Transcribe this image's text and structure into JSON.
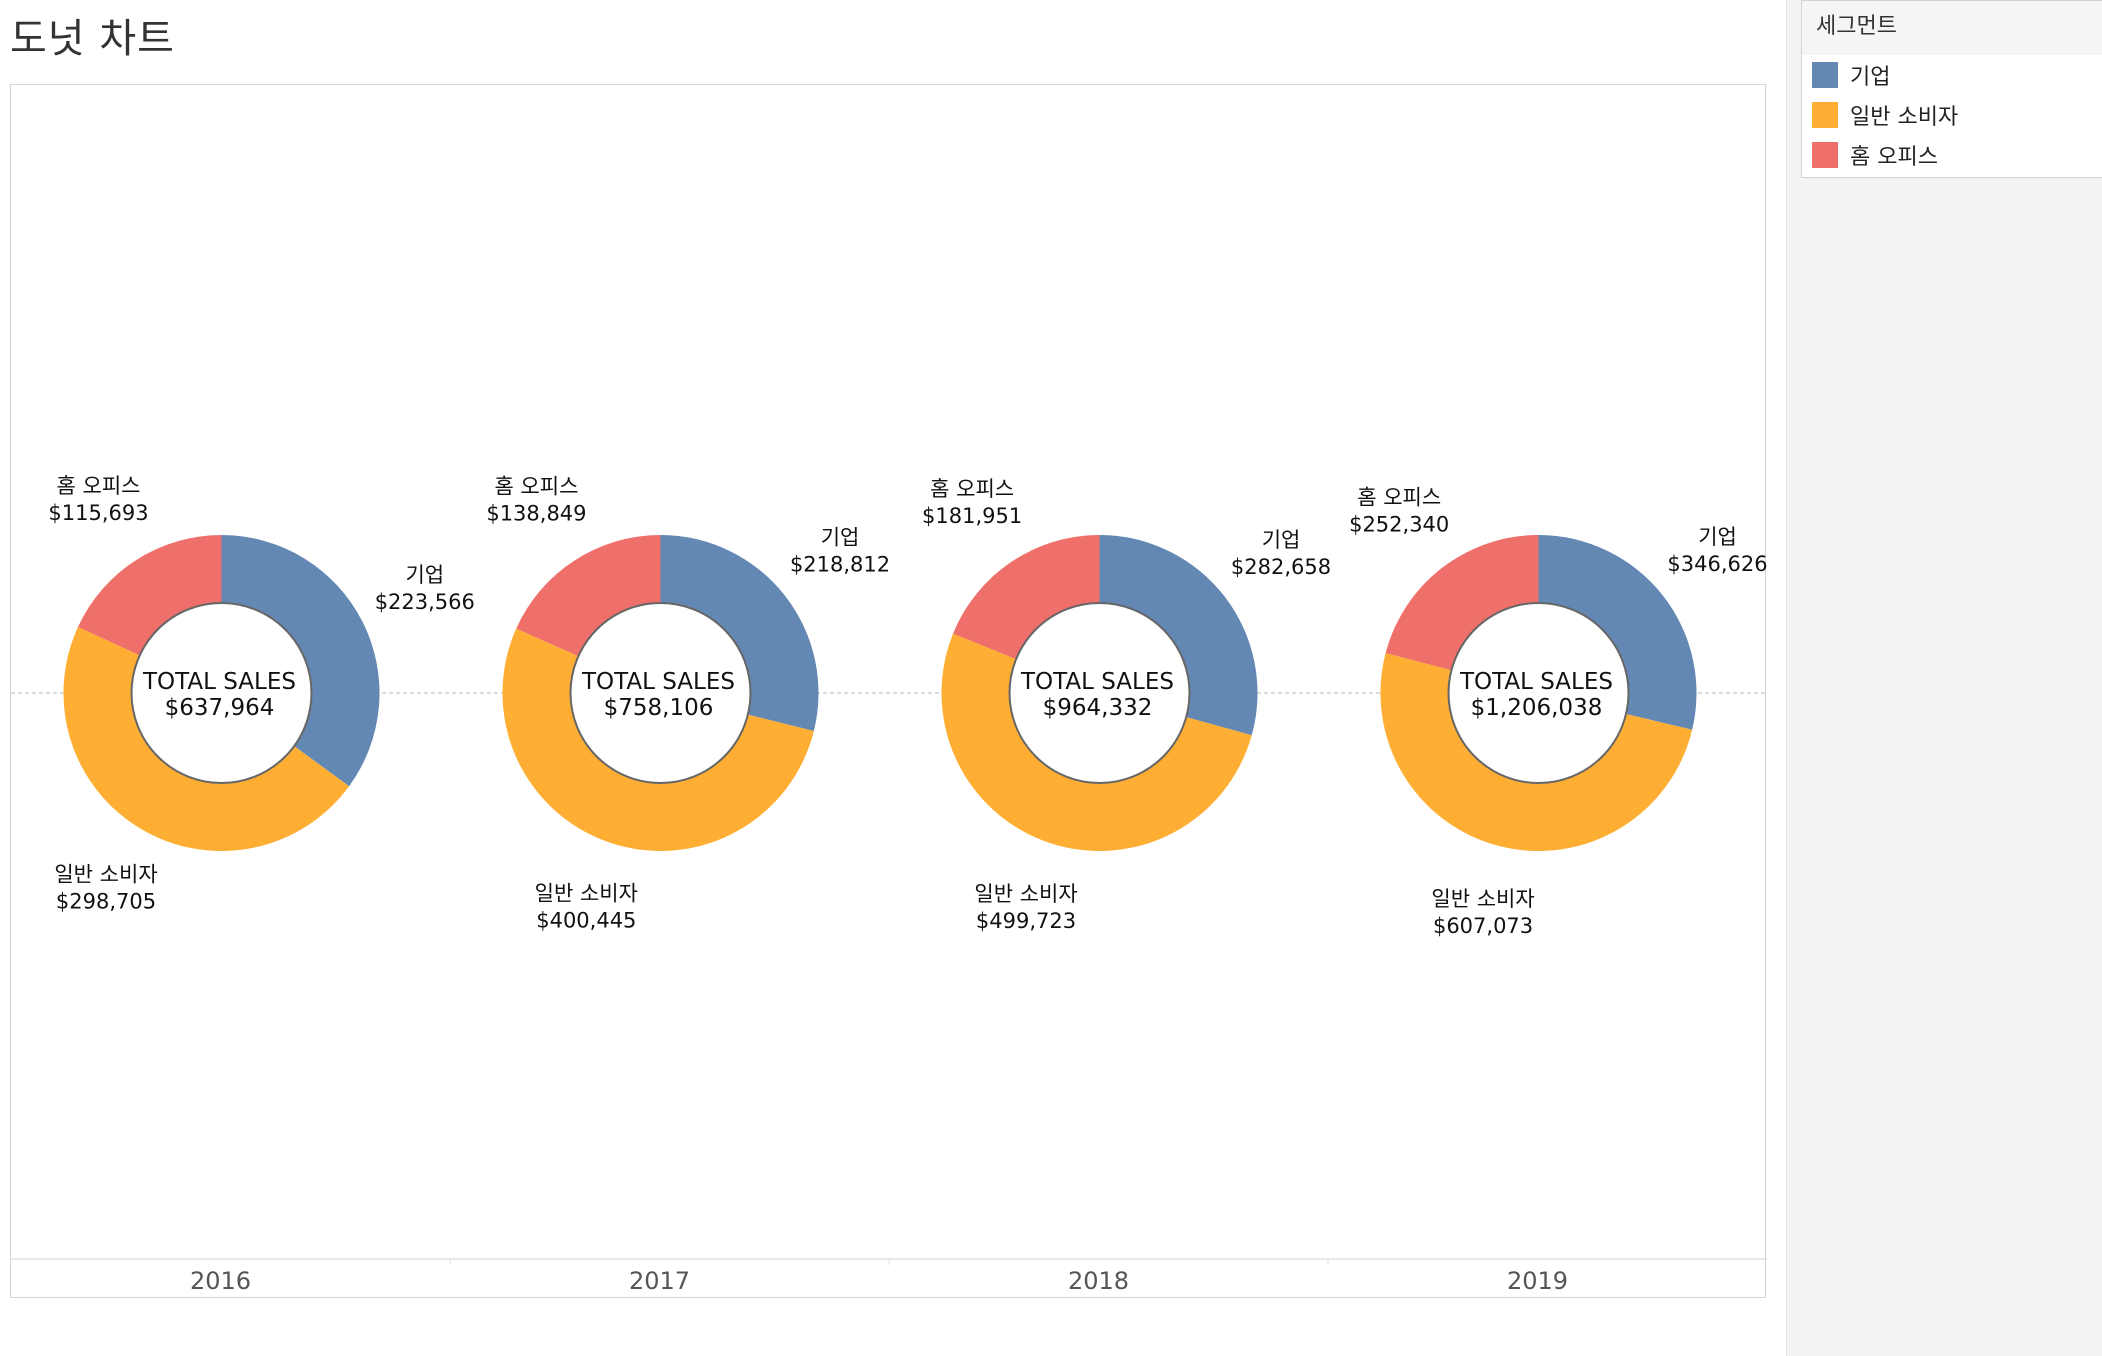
{
  "title": "도넛 차트",
  "legend": {
    "title": "세그먼트",
    "items": [
      {
        "label": "기업",
        "color": "#6388b4"
      },
      {
        "label": "일반 소비자",
        "color": "#ffae34"
      },
      {
        "label": "홈 오피스",
        "color": "#ef6f6a"
      }
    ]
  },
  "chart_data": {
    "type": "donut",
    "center_label": "TOTAL SALES",
    "categories": [
      "2016",
      "2017",
      "2018",
      "2019"
    ],
    "series": [
      {
        "name": "기업",
        "color": "#6388b4",
        "values": [
          223566,
          218812,
          282658,
          346626
        ]
      },
      {
        "name": "일반 소비자",
        "color": "#ffae34",
        "values": [
          298705,
          400445,
          499723,
          607073
        ]
      },
      {
        "name": "홈 오피스",
        "color": "#ef6f6a",
        "values": [
          115693,
          138849,
          181951,
          252340
        ]
      }
    ],
    "slice_labels": [
      [
        "$223,566",
        "$298,705",
        "$115,693"
      ],
      [
        "$218,812",
        "$400,445",
        "$138,849"
      ],
      [
        "$282,658",
        "$499,723",
        "$181,951"
      ],
      [
        "$346,626",
        "$607,073",
        "$252,340"
      ]
    ],
    "totals": [
      "$637,964",
      "$758,106",
      "$964,332",
      "$1,206,038"
    ],
    "reference_line": true
  }
}
